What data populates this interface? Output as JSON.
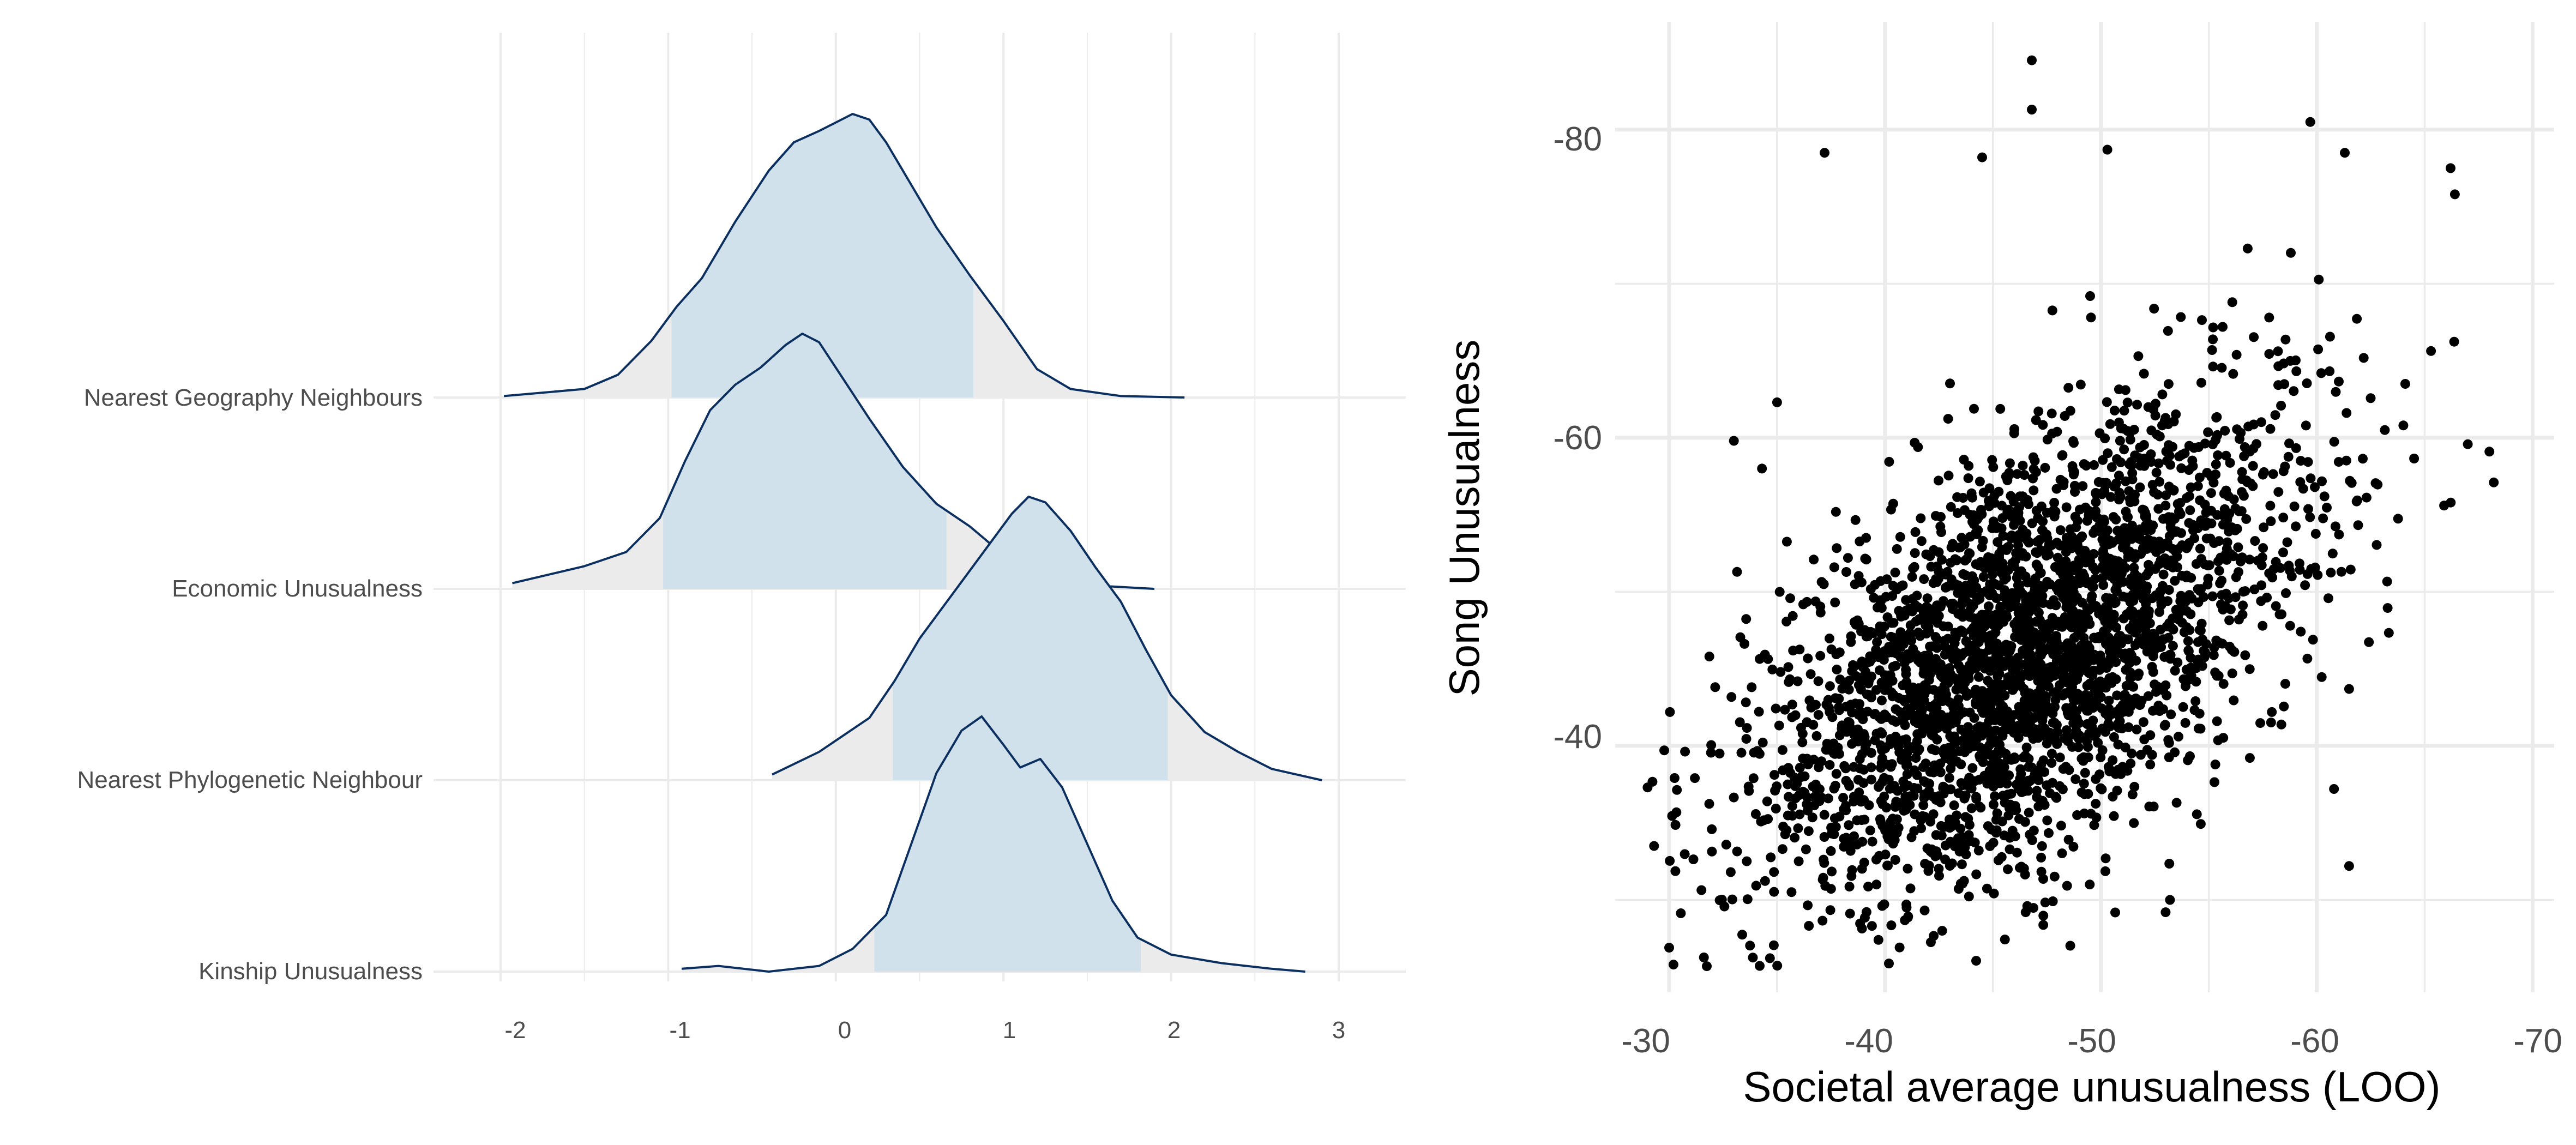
{
  "chart_data": [
    {
      "type": "ridgeline",
      "categories": [
        "Nearest Geography Neighbours",
        "Economic Unusualness",
        "Nearest Phylogenetic Neighbour",
        "Kinship Unusualness"
      ],
      "x_ticks": [
        "-2",
        "-1",
        "0",
        "1",
        "2",
        "3"
      ],
      "xlim": [
        -2.4,
        3.4
      ],
      "xlabel": "",
      "ylabel": "",
      "grid": true,
      "colors": {
        "interval_fill": "#d1e1ec",
        "tail_fill": "#ebebeb",
        "line": "#0b2f5f",
        "grid": "#ebebeb"
      },
      "series": [
        {
          "density": [
            [
              -1.98,
              0.005
            ],
            [
              -1.5,
              0.03
            ],
            [
              -1.3,
              0.08
            ],
            [
              -1.1,
              0.2
            ],
            [
              -0.95,
              0.32
            ],
            [
              -0.8,
              0.42
            ],
            [
              -0.6,
              0.62
            ],
            [
              -0.4,
              0.8
            ],
            [
              -0.25,
              0.9
            ],
            [
              -0.1,
              0.94
            ],
            [
              0.0,
              0.97
            ],
            [
              0.1,
              1.0
            ],
            [
              0.2,
              0.98
            ],
            [
              0.3,
              0.9
            ],
            [
              0.45,
              0.75
            ],
            [
              0.6,
              0.6
            ],
            [
              0.8,
              0.43
            ],
            [
              1.0,
              0.27
            ],
            [
              1.2,
              0.1
            ],
            [
              1.4,
              0.03
            ],
            [
              1.7,
              0.005
            ],
            [
              2.08,
              0.0
            ]
          ],
          "interval": [
            -0.98,
            0.82
          ]
        },
        {
          "density": [
            [
              -1.93,
              0.02
            ],
            [
              -1.5,
              0.08
            ],
            [
              -1.25,
              0.13
            ],
            [
              -1.05,
              0.25
            ],
            [
              -0.9,
              0.45
            ],
            [
              -0.75,
              0.63
            ],
            [
              -0.6,
              0.72
            ],
            [
              -0.45,
              0.78
            ],
            [
              -0.3,
              0.86
            ],
            [
              -0.2,
              0.9
            ],
            [
              -0.1,
              0.87
            ],
            [
              0.0,
              0.78
            ],
            [
              0.2,
              0.6
            ],
            [
              0.4,
              0.43
            ],
            [
              0.6,
              0.3
            ],
            [
              0.8,
              0.22
            ],
            [
              1.0,
              0.12
            ],
            [
              1.2,
              0.07
            ],
            [
              1.4,
              0.03
            ],
            [
              1.6,
              0.01
            ],
            [
              1.9,
              0.0
            ]
          ],
          "interval": [
            -1.03,
            0.66
          ]
        },
        {
          "density": [
            [
              -0.38,
              0.02
            ],
            [
              -0.1,
              0.1
            ],
            [
              0.2,
              0.22
            ],
            [
              0.35,
              0.35
            ],
            [
              0.5,
              0.5
            ],
            [
              0.7,
              0.66
            ],
            [
              0.9,
              0.82
            ],
            [
              1.05,
              0.94
            ],
            [
              1.15,
              1.0
            ],
            [
              1.25,
              0.98
            ],
            [
              1.4,
              0.88
            ],
            [
              1.55,
              0.75
            ],
            [
              1.7,
              0.63
            ],
            [
              1.85,
              0.46
            ],
            [
              2.0,
              0.3
            ],
            [
              2.2,
              0.17
            ],
            [
              2.4,
              0.1
            ],
            [
              2.6,
              0.04
            ],
            [
              2.9,
              0.0
            ]
          ],
          "interval": [
            0.34,
            1.98
          ]
        },
        {
          "density": [
            [
              -0.92,
              0.01
            ],
            [
              -0.7,
              0.02
            ],
            [
              -0.4,
              0.0
            ],
            [
              -0.1,
              0.02
            ],
            [
              0.1,
              0.08
            ],
            [
              0.3,
              0.2
            ],
            [
              0.45,
              0.45
            ],
            [
              0.6,
              0.7
            ],
            [
              0.75,
              0.85
            ],
            [
              0.87,
              0.9
            ],
            [
              1.0,
              0.8
            ],
            [
              1.1,
              0.72
            ],
            [
              1.22,
              0.75
            ],
            [
              1.35,
              0.65
            ],
            [
              1.5,
              0.45
            ],
            [
              1.65,
              0.25
            ],
            [
              1.8,
              0.12
            ],
            [
              2.0,
              0.06
            ],
            [
              2.3,
              0.03
            ],
            [
              2.6,
              0.01
            ],
            [
              2.8,
              0.0
            ]
          ],
          "interval": [
            0.23,
            1.82
          ]
        }
      ]
    },
    {
      "type": "scatter",
      "xlabel": "Societal average unusualness (LOO)",
      "ylabel": "Song Unusualness",
      "x_ticks": [
        "-30",
        "-40",
        "-50",
        "-60",
        "-70"
      ],
      "y_ticks": [
        "-80",
        "-60",
        "-40"
      ],
      "xlim": [
        -27.5,
        -71
      ],
      "ylim": [
        -24,
        -87
      ],
      "grid": true,
      "colors": {
        "point": "#000000",
        "grid": "#ebebeb"
      },
      "n_points": 3000,
      "mean": [
        -46.5,
        -46
      ],
      "sd": [
        6.2,
        7.8
      ],
      "correlation": 0.55,
      "outliers": [
        [
          -46.8,
          -84.5
        ],
        [
          -46.8,
          -81.3
        ],
        [
          -37.2,
          -78.5
        ],
        [
          -44.5,
          -78.2
        ],
        [
          -50.3,
          -78.7
        ],
        [
          -59.7,
          -80.5
        ],
        [
          -61.3,
          -78.5
        ],
        [
          -66.2,
          -77.5
        ],
        [
          -66.4,
          -75.8
        ],
        [
          -68.0,
          -59.1
        ],
        [
          -68.2,
          -57.1
        ],
        [
          -29.0,
          -37.3
        ],
        [
          -29.3,
          -33.5
        ],
        [
          -30.0,
          -26.9
        ],
        [
          -30.2,
          -25.8
        ],
        [
          -35.0,
          -62.3
        ],
        [
          -33.0,
          -59.8
        ],
        [
          -34.3,
          -58.0
        ],
        [
          -61.5,
          -32.2
        ],
        [
          -60.8,
          -37.2
        ],
        [
          -53.0,
          -29.2
        ],
        [
          -53.2,
          -30.0
        ],
        [
          -41.0,
          -29.5
        ],
        [
          -58.8,
          -72.0
        ],
        [
          -65.9,
          -55.6
        ],
        [
          -64.1,
          -63.5
        ]
      ]
    }
  ]
}
